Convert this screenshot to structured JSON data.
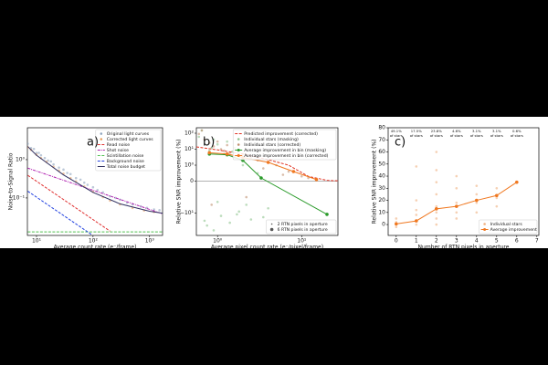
{
  "chart_data": [
    {
      "type": "line",
      "panel_label": "a)",
      "xscale": "log",
      "yscale": "log",
      "xlabel": "Average count rate (e⁻/frame)",
      "ylabel": "Noise-to-Signal Ratio",
      "xlim": [
        6.9,
        1700
      ],
      "ylim": [
        0.0105,
        6.8
      ],
      "xticks": [
        {
          "value": 10,
          "label": "10¹"
        },
        {
          "value": 100,
          "label": "10²"
        },
        {
          "value": 1000,
          "label": "10³"
        }
      ],
      "yticks": [
        {
          "value": 0.1,
          "label": "10⁻¹"
        },
        {
          "value": 1,
          "label": "10⁰"
        }
      ],
      "legend": "upper right",
      "series": [
        {
          "name": "Original light curves",
          "kind": "scatter",
          "color": "#8fa5bf",
          "x": [
            7,
            8,
            9,
            10,
            11,
            12,
            14,
            16,
            18,
            20,
            25,
            30,
            35,
            40,
            50,
            60,
            70,
            80,
            100,
            120,
            150,
            200,
            250,
            300,
            400,
            500,
            700,
            900,
            1200,
            1500
          ],
          "values": [
            2.6,
            2.0,
            1.9,
            1.5,
            1.5,
            1.3,
            1.1,
            0.95,
            0.9,
            0.75,
            0.62,
            0.55,
            0.45,
            0.42,
            0.33,
            0.3,
            0.25,
            0.22,
            0.19,
            0.16,
            0.14,
            0.11,
            0.1,
            0.09,
            0.075,
            0.068,
            0.06,
            0.055,
            0.05,
            0.048
          ]
        },
        {
          "name": "Corrected light curves",
          "kind": "scatter",
          "color": "#e8a060",
          "x": [
            7,
            8,
            10,
            12,
            15,
            20,
            25,
            30,
            40,
            50,
            70,
            100,
            150,
            200,
            300,
            500,
            800,
            1200
          ],
          "values": [
            2.1,
            1.8,
            1.35,
            1.1,
            0.88,
            0.65,
            0.52,
            0.43,
            0.33,
            0.27,
            0.2,
            0.145,
            0.105,
            0.085,
            0.068,
            0.055,
            0.047,
            0.043
          ]
        },
        {
          "name": "Read noise",
          "kind": "line",
          "dash": "dashed",
          "color": "#e03030",
          "x": [
            7,
            200
          ],
          "values": [
            0.39,
            0.0136
          ]
        },
        {
          "name": "Shot noise",
          "kind": "line",
          "dash": "dashdot",
          "color": "#b020b0",
          "x": [
            7,
            1700
          ],
          "values": [
            0.6,
            0.0385
          ]
        },
        {
          "name": "Scintillation noise",
          "kind": "line",
          "dash": "dashed",
          "color": "#50c050",
          "x": [
            7,
            1700
          ],
          "values": [
            0.013,
            0.013
          ]
        },
        {
          "name": "Background noise",
          "kind": "line",
          "dash": "dashed",
          "color": "#2040e0",
          "x": [
            7,
            95
          ],
          "values": [
            0.15,
            0.011
          ]
        },
        {
          "name": "Total noise budget",
          "kind": "line",
          "dash": "solid",
          "color": "#303060",
          "x": [
            7,
            10,
            30,
            100,
            300,
            1000,
            1700
          ],
          "values": [
            2.2,
            1.3,
            0.4,
            0.14,
            0.07,
            0.045,
            0.04
          ]
        }
      ]
    },
    {
      "type": "line",
      "panel_label": "b)",
      "xscale": "log",
      "yscale": "symlog",
      "zero_line": true,
      "xlabel": "Average pixel count rate (e⁻/pixel/frame)",
      "ylabel": "Relative SNR improvement (%)",
      "xlim": [
        0.56,
        27
      ],
      "ylim": [
        -250,
        220
      ],
      "xticks": [
        {
          "value": 1,
          "label": "10⁰"
        },
        {
          "value": 10,
          "label": "10¹"
        }
      ],
      "yticks": [
        {
          "value": -10,
          "label": "−10¹"
        },
        0,
        {
          "value": 1,
          "label": "10⁰"
        },
        {
          "value": 10,
          "label": "10¹"
        },
        {
          "value": 100,
          "label": "10²"
        }
      ],
      "legend": "upper right",
      "size_legend": [
        "2 RTN pixels in aperture",
        "6 RTN pixels in aperture"
      ],
      "size_legend_corner": "lower right",
      "series": [
        {
          "name": "Predicted improvement (corrected)",
          "kind": "line",
          "dash": "dashed",
          "color": "#e03020",
          "x": [
            0.56,
            1,
            2,
            4,
            7,
            12,
            20,
            27
          ],
          "values": [
            14,
            9,
            5,
            2.2,
            1,
            0.3,
            0.05,
            0.02
          ]
        },
        {
          "name": "Individual stars (masking)",
          "kind": "scatter",
          "color": "#8fc48f",
          "x": [
            0.6,
            0.7,
            0.8,
            0.9,
            1,
            1.1,
            1.2,
            1.4,
            1.6,
            1.8,
            2,
            2.5,
            3,
            4,
            0.65,
            0.75,
            0.85,
            1.0,
            1.3,
            1.7,
            2.2,
            3.5,
            0.9,
            1.5
          ],
          "values": [
            60,
            -30,
            8,
            -120,
            20,
            -15,
            5,
            -40,
            3,
            -8,
            1,
            -25,
            0.5,
            -5,
            150,
            -60,
            12,
            -2,
            30,
            -12,
            -3,
            -18,
            40,
            7
          ]
        },
        {
          "name": "Individual stars (corrected)",
          "kind": "scatter",
          "color": "#c09070",
          "x": [
            0.6,
            0.7,
            0.8,
            0.9,
            1,
            1.1,
            1.2,
            1.4,
            1.6,
            1.8,
            2,
            2.5,
            3,
            4,
            5,
            7,
            10,
            0.65,
            0.85,
            1.3,
            2.2,
            3.5,
            6,
            12
          ],
          "values": [
            90,
            40,
            25,
            15,
            30,
            10,
            8,
            6,
            12,
            4,
            5,
            3,
            2,
            1.5,
            1,
            0.6,
            0.3,
            150,
            -3,
            18,
            -1,
            0.8,
            0.4,
            0.2
          ]
        },
        {
          "name": "Average improvement in bin (masking)",
          "kind": "line",
          "dash": "solid",
          "markers": true,
          "color": "#2a9a2a",
          "x": [
            0.8,
            1.3,
            2,
            3.3,
            20
          ],
          "values": [
            5,
            4.5,
            2,
            0.2,
            -12
          ]
        },
        {
          "name": "Average improvement in bin (corrected)",
          "kind": "line",
          "dash": "solid",
          "markers": true,
          "color": "#f07820",
          "x": [
            0.8,
            1.3,
            2,
            4,
            8,
            15
          ],
          "values": [
            6,
            5,
            3,
            1.5,
            0.6,
            0.1
          ]
        }
      ]
    },
    {
      "type": "line",
      "panel_label": "c)",
      "xscale": "linear",
      "yscale": "linear",
      "xlabel": "Number of RTN pixels in aperture",
      "ylabel": "Relative SNR improvement (%)",
      "xlim": [
        -0.4,
        7.1
      ],
      "ylim": [
        -9,
        80
      ],
      "xticks": [
        0,
        1,
        2,
        3,
        4,
        5,
        6,
        7
      ],
      "yticks": [
        0,
        10,
        20,
        30,
        40,
        50,
        60,
        70,
        80
      ],
      "legend": "lower right",
      "annotations": [
        {
          "x": 0,
          "lines": [
            "49.1%",
            "of stars"
          ]
        },
        {
          "x": 1,
          "lines": [
            "17.5%",
            "of stars"
          ]
        },
        {
          "x": 2,
          "lines": [
            "23.8%",
            "of stars"
          ]
        },
        {
          "x": 3,
          "lines": [
            "4.6%",
            "of stars"
          ]
        },
        {
          "x": 4,
          "lines": [
            "3.1%",
            "of stars"
          ]
        },
        {
          "x": 5,
          "lines": [
            "3.1%",
            "of stars"
          ]
        },
        {
          "x": 6,
          "lines": [
            "0.6%",
            "of stars"
          ]
        }
      ],
      "series": [
        {
          "name": "Individual stars",
          "kind": "scatter",
          "color": "#f0b080",
          "x": [
            0,
            0,
            0,
            0,
            1,
            1,
            1,
            1,
            1,
            1,
            2,
            2,
            2,
            2,
            2,
            2,
            2,
            2,
            3,
            3,
            3,
            3,
            3,
            4,
            4,
            4,
            4,
            5,
            5,
            5,
            6
          ],
          "values": [
            0,
            2,
            5,
            -2,
            0,
            3,
            8,
            12,
            20,
            48,
            0,
            5,
            10,
            15,
            25,
            35,
            45,
            60,
            5,
            10,
            18,
            30,
            40,
            10,
            18,
            25,
            32,
            15,
            22,
            30,
            35
          ]
        },
        {
          "name": "Average improvement",
          "kind": "line",
          "dash": "solid",
          "markers": true,
          "color": "#f07820",
          "x": [
            0,
            1,
            2,
            3,
            4,
            5,
            6
          ],
          "values": [
            0.5,
            3,
            13,
            15,
            20,
            24,
            35
          ]
        }
      ]
    }
  ]
}
